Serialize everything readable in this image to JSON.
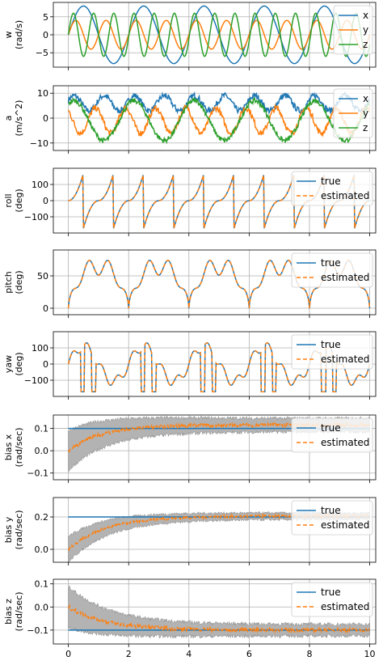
{
  "colors": {
    "blue": "#1f77b4",
    "orange": "#ff7f0e",
    "green": "#2ca02c",
    "band": "#b3b3b3",
    "grid": "#b0b0b0"
  },
  "chart_data": {
    "type": "line",
    "shared_x": {
      "xlim": [
        -0.5,
        10.2
      ],
      "ticks": [
        0,
        2,
        4,
        6,
        8,
        10
      ],
      "tick_labels": [
        "0",
        "2",
        "4",
        "6",
        "8",
        "10"
      ]
    },
    "grid": true,
    "subplots": [
      {
        "key": "w",
        "ylabel": [
          "w",
          "(rad/s)"
        ],
        "ylim": [
          -9,
          9
        ],
        "yticks": [
          -5,
          0,
          5
        ],
        "ytick_labels": [
          "−5",
          "0",
          "5"
        ],
        "legend": [
          "x",
          "y",
          "z"
        ],
        "series": [
          {
            "name": "x",
            "color": "blue",
            "kind": "sine",
            "amp": 8,
            "period": 2.0,
            "phase": 0.0,
            "offset": 0
          },
          {
            "name": "y",
            "color": "orange",
            "kind": "sine",
            "amp": 4,
            "period": 1.0,
            "phase": 0.0,
            "offset": 0
          },
          {
            "name": "z",
            "color": "green",
            "kind": "sine",
            "amp": 6,
            "period": 0.67,
            "phase": 0.0,
            "offset": 0
          }
        ]
      },
      {
        "key": "a",
        "ylabel": [
          "a",
          "(m/s^2)"
        ],
        "ylim": [
          -13,
          13
        ],
        "yticks": [
          -10,
          0,
          10
        ],
        "ytick_labels": [
          "−10",
          "0",
          "10"
        ],
        "legend": [
          "x",
          "y",
          "z"
        ],
        "series": [
          {
            "name": "x",
            "color": "blue",
            "kind": "noisy_sine",
            "amp": 3,
            "period": 1.0,
            "phase": 0.4,
            "offset": 6,
            "noise": 1.2
          },
          {
            "name": "y",
            "color": "orange",
            "kind": "noisy_sine",
            "amp": 5,
            "period": 1.0,
            "phase": 2.2,
            "offset": -1,
            "noise": 1.2
          },
          {
            "name": "z",
            "color": "green",
            "kind": "noisy_sine",
            "amp": 8,
            "period": 2.0,
            "phase": 1.0,
            "offset": -1,
            "noise": 1.0
          }
        ]
      },
      {
        "key": "roll",
        "ylabel": [
          "roll",
          "(deg)"
        ],
        "ylim": [
          -200,
          200
        ],
        "yticks": [
          -100,
          0,
          100
        ],
        "ytick_labels": [
          "−100",
          "0",
          "100"
        ],
        "legend": [
          "true",
          "estimated"
        ],
        "series": [
          {
            "name": "true",
            "color": "blue",
            "kind": "sawtooth",
            "amp": 180,
            "period": 1.0,
            "phase": 0.0,
            "offset": 0
          },
          {
            "name": "estimated",
            "color": "orange",
            "dashed": true,
            "kind": "sawtooth",
            "amp": 180,
            "period": 1.0,
            "phase": 0.0,
            "offset": 0
          }
        ]
      },
      {
        "key": "pitch",
        "ylabel": [
          "pitch",
          "(deg)"
        ],
        "ylim": [
          -10,
          90
        ],
        "yticks": [
          0,
          50
        ],
        "ytick_labels": [
          "0",
          "50"
        ],
        "legend": [
          "true",
          "estimated"
        ],
        "series": [
          {
            "name": "true",
            "color": "blue",
            "kind": "bump",
            "amp": 80,
            "period": 2.0,
            "phase": 0.0,
            "offset": 0
          },
          {
            "name": "estimated",
            "color": "orange",
            "dashed": true,
            "kind": "bump",
            "amp": 80,
            "period": 2.0,
            "phase": 0.0,
            "offset": 0
          }
        ]
      },
      {
        "key": "yaw",
        "ylabel": [
          "yaw",
          "(deg)"
        ],
        "ylim": [
          -200,
          200
        ],
        "yticks": [
          -100,
          0,
          100
        ],
        "ytick_labels": [
          "−100",
          "0",
          "100"
        ],
        "legend": [
          "true",
          "estimated"
        ],
        "series": [
          {
            "name": "true",
            "color": "blue",
            "kind": "yawwave",
            "amp": 180,
            "period": 2.0,
            "phase": 0.0,
            "offset": 0
          },
          {
            "name": "estimated",
            "color": "orange",
            "dashed": true,
            "kind": "yawwave",
            "amp": 180,
            "period": 2.0,
            "phase": 0.0,
            "offset": 0
          }
        ]
      },
      {
        "key": "bias_x",
        "ylabel": [
          "bias x",
          "(rad/sec)"
        ],
        "ylim": [
          -0.13,
          0.16
        ],
        "yticks": [
          -0.1,
          0.0,
          0.1
        ],
        "ytick_labels": [
          "−0.1",
          "0.0",
          "0.1"
        ],
        "legend": [
          "true",
          "estimated"
        ],
        "band": {
          "width_start": 0.09,
          "width_end": 0.03
        },
        "series": [
          {
            "name": "true",
            "color": "blue",
            "kind": "const",
            "value": 0.1
          },
          {
            "name": "estimated",
            "color": "orange",
            "dashed": true,
            "kind": "converge",
            "start": 0.0,
            "target": 0.115,
            "rate": 0.9,
            "noise": 0.008
          }
        ]
      },
      {
        "key": "bias_y",
        "ylabel": [
          "bias y",
          "(rad/sec)"
        ],
        "ylim": [
          -0.08,
          0.32
        ],
        "yticks": [
          0.0,
          0.2
        ],
        "ytick_labels": [
          "0.0",
          "0.2"
        ],
        "legend": [
          "true",
          "estimated"
        ],
        "band": {
          "width_start": 0.08,
          "width_end": 0.02
        },
        "series": [
          {
            "name": "true",
            "color": "blue",
            "kind": "const",
            "value": 0.2
          },
          {
            "name": "estimated",
            "color": "orange",
            "dashed": true,
            "kind": "converge",
            "start": 0.0,
            "target": 0.205,
            "rate": 0.8,
            "noise": 0.008
          }
        ]
      },
      {
        "key": "bias_z",
        "ylabel": [
          "bias z",
          "(rad/sec)"
        ],
        "ylim": [
          -0.16,
          0.12
        ],
        "yticks": [
          -0.1,
          0.0,
          0.1
        ],
        "ytick_labels": [
          "−0.1",
          "0.0",
          "0.1"
        ],
        "legend": [
          "true",
          "estimated"
        ],
        "band": {
          "width_start": 0.09,
          "width_end": 0.025
        },
        "series": [
          {
            "name": "true",
            "color": "blue",
            "kind": "const",
            "value": -0.1
          },
          {
            "name": "estimated",
            "color": "orange",
            "dashed": true,
            "kind": "converge",
            "start": 0.0,
            "target": -0.1,
            "rate": 0.8,
            "noise": 0.008
          }
        ]
      }
    ]
  }
}
